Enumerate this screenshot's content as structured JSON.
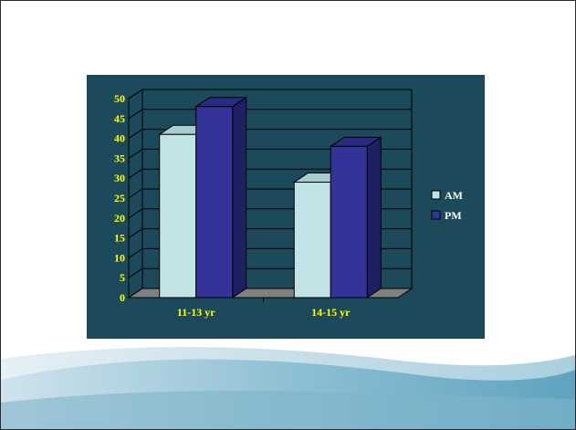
{
  "colors": {
    "panel": "#1d4a5b",
    "am_front": "#c2e3e5",
    "am_top": "#a8cccf",
    "am_side": "#8fb5b9",
    "pm_front": "#343399",
    "pm_top": "#2a2a80",
    "pm_side": "#1f1f66",
    "tick_text": "#ffff00",
    "legend_text": "#ffffff"
  },
  "chart_data": {
    "type": "bar",
    "categories": [
      "11-13 yr",
      "14-15 yr"
    ],
    "series": [
      {
        "name": "AM",
        "values": [
          41,
          29
        ]
      },
      {
        "name": "PM",
        "values": [
          48,
          38
        ]
      }
    ],
    "ylim": [
      0,
      50
    ],
    "yticks": [
      "0",
      "5",
      "10",
      "15",
      "20",
      "25",
      "30",
      "35",
      "40",
      "45",
      "50"
    ],
    "grid": true,
    "legend": "right",
    "title": "",
    "xlabel": "",
    "ylabel": ""
  }
}
